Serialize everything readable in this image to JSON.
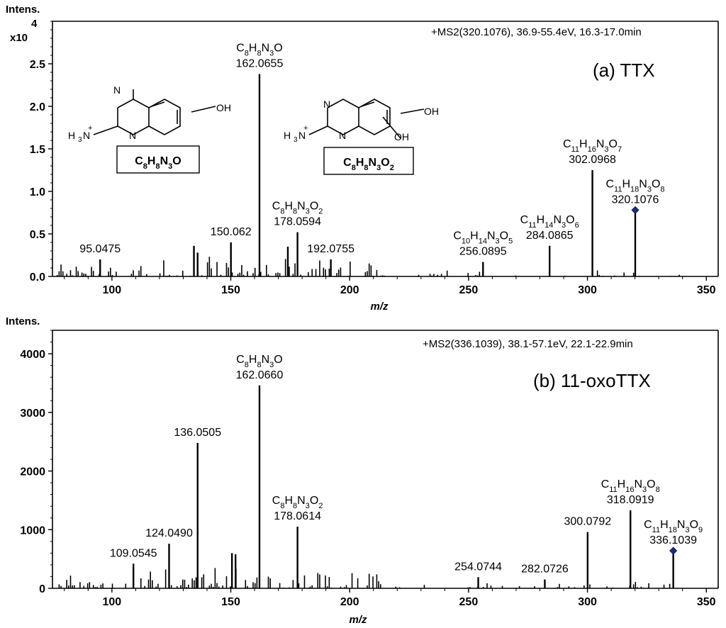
{
  "chart_data": [
    {
      "type": "bar",
      "panel": "a",
      "header": "+MS2(320.1076), 36.9-55.4eV, 16.3-17.0min",
      "title": "(a) TTX",
      "ylabel": "Intens.",
      "ymult": "x10",
      "ymult_exp": "4",
      "xlabel": "m/z",
      "xlim": [
        75,
        355
      ],
      "ylim": [
        0,
        3.0
      ],
      "xticks": [
        100,
        150,
        200,
        250,
        300,
        350
      ],
      "yticks": [
        0.0,
        0.5,
        1.0,
        1.5,
        2.0,
        2.5
      ],
      "y_tick_labels": [
        "0.0",
        "0.5",
        "1.0",
        "1.5",
        "2.0",
        "2.5"
      ],
      "peaks": [
        {
          "mz": 95.0475,
          "intensity": 0.2,
          "label": "95.0475"
        },
        {
          "mz": 134.5,
          "intensity": 0.36
        },
        {
          "mz": 136.05,
          "intensity": 0.28
        },
        {
          "mz": 150.062,
          "intensity": 0.4,
          "label": "150.062"
        },
        {
          "mz": 162.0655,
          "intensity": 2.38,
          "label": "162.0655",
          "formula": [
            "C",
            "8",
            "H",
            "8",
            "N",
            "3",
            "O"
          ]
        },
        {
          "mz": 174.0,
          "intensity": 0.35
        },
        {
          "mz": 178.0594,
          "intensity": 0.52,
          "label": "178.0594",
          "formula": [
            "C",
            "8",
            "H",
            "8",
            "N",
            "3",
            "O",
            "2"
          ]
        },
        {
          "mz": 192.0755,
          "intensity": 0.2,
          "label": "192.0755"
        },
        {
          "mz": 256.0895,
          "intensity": 0.17,
          "label": "256.0895",
          "formula": [
            "C",
            "10",
            "H",
            "14",
            "N",
            "3",
            "O",
            "5"
          ]
        },
        {
          "mz": 284.0865,
          "intensity": 0.36,
          "label": "284.0865",
          "formula": [
            "C",
            "11",
            "H",
            "14",
            "N",
            "3",
            "O",
            "6"
          ]
        },
        {
          "mz": 302.0968,
          "intensity": 1.25,
          "label": "302.0968",
          "formula": [
            "C",
            "11",
            "H",
            "16",
            "N",
            "3",
            "O",
            "7"
          ]
        },
        {
          "mz": 320.1076,
          "intensity": 0.78,
          "label": "320.1076",
          "formula": [
            "C",
            "11",
            "H",
            "18",
            "N",
            "3",
            "O",
            "8"
          ],
          "precursor": true
        }
      ],
      "structures": [
        {
          "box": [
            "C",
            "8",
            "H",
            "8",
            "N",
            "3",
            "O"
          ]
        },
        {
          "box": [
            "C",
            "8",
            "H",
            "8",
            "N",
            "3",
            "O",
            "2"
          ]
        }
      ]
    },
    {
      "type": "bar",
      "panel": "b",
      "header": "+MS2(336.1039), 38.1-57.1eV, 22.1-22.9min",
      "title": "(b) 11-oxoTTX",
      "ylabel": "Intens.",
      "xlabel": "m/z",
      "xlim": [
        75,
        355
      ],
      "ylim": [
        0,
        4400
      ],
      "xticks": [
        100,
        150,
        200,
        250,
        300,
        350
      ],
      "yticks": [
        0,
        1000,
        2000,
        3000,
        4000
      ],
      "y_tick_labels": [
        "0",
        "1000",
        "2000",
        "3000",
        "4000"
      ],
      "peaks": [
        {
          "mz": 109.0545,
          "intensity": 420,
          "label": "109.0545"
        },
        {
          "mz": 124.049,
          "intensity": 760,
          "label": "124.0490"
        },
        {
          "mz": 136.0505,
          "intensity": 2480,
          "label": "136.0505"
        },
        {
          "mz": 150.5,
          "intensity": 600
        },
        {
          "mz": 152.0,
          "intensity": 580
        },
        {
          "mz": 162.066,
          "intensity": 3460,
          "label": "162.0660",
          "formula": [
            "C",
            "8",
            "H",
            "8",
            "N",
            "3",
            "O"
          ]
        },
        {
          "mz": 178.0614,
          "intensity": 1050,
          "label": "178.0614",
          "formula": [
            "C",
            "8",
            "H",
            "8",
            "N",
            "3",
            "O",
            "2"
          ]
        },
        {
          "mz": 254.0744,
          "intensity": 190,
          "label": "254.0744"
        },
        {
          "mz": 282.0726,
          "intensity": 150,
          "label": "282.0726"
        },
        {
          "mz": 300.0792,
          "intensity": 960,
          "label": "300.0792"
        },
        {
          "mz": 318.0919,
          "intensity": 1330,
          "label": "318.0919",
          "formula": [
            "C",
            "11",
            "H",
            "16",
            "N",
            "3",
            "O",
            "8"
          ]
        },
        {
          "mz": 336.1039,
          "intensity": 640,
          "label": "336.1039",
          "formula": [
            "C",
            "11",
            "H",
            "18",
            "N",
            "3",
            "O",
            "9"
          ],
          "precursor": true
        }
      ]
    }
  ]
}
